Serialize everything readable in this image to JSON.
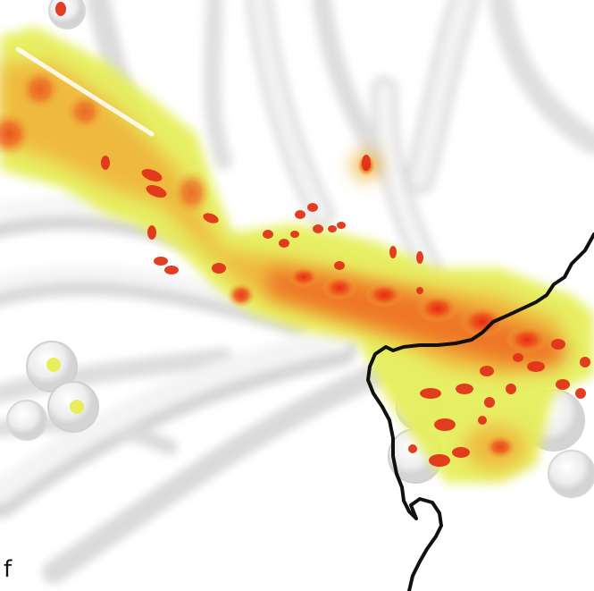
{
  "panel": {
    "label": "f"
  },
  "colors": {
    "background": "#ffffff",
    "relief_light": "#f4f4f4",
    "relief_shadow": "#d9d9d9",
    "density_low": "#e8f05a",
    "density_mid": "#f0b43a",
    "density_high": "#ee5a1e",
    "density_peak": "#e52a10",
    "boundary_line": "#111111"
  },
  "legend": "none",
  "map_style": "shaded-relief base with heat-density overlay and black boundary line"
}
